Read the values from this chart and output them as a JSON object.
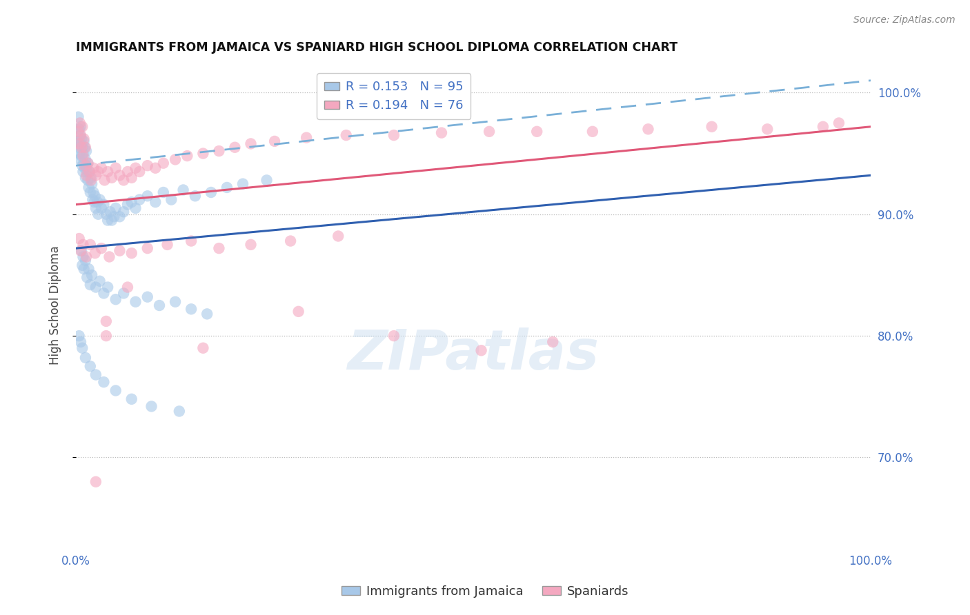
{
  "title": "IMMIGRANTS FROM JAMAICA VS SPANIARD HIGH SCHOOL DIPLOMA CORRELATION CHART",
  "source": "Source: ZipAtlas.com",
  "ylabel": "High School Diploma",
  "legend_label1": "Immigrants from Jamaica",
  "legend_label2": "Spaniards",
  "R1": 0.153,
  "N1": 95,
  "R2": 0.194,
  "N2": 76,
  "blue_color": "#a8c8e8",
  "pink_color": "#f4a8c0",
  "blue_line_color": "#3060b0",
  "pink_line_color": "#e05878",
  "dashed_line_color": "#7ab0d8",
  "x_min": 0.0,
  "x_max": 1.0,
  "y_min": 0.625,
  "y_max": 1.025,
  "y_ticks": [
    0.7,
    0.8,
    0.9,
    1.0
  ],
  "y_tick_labels": [
    "70.0%",
    "80.0%",
    "90.0%",
    "100.0%"
  ],
  "blue_line_x0": 0.0,
  "blue_line_y0": 0.872,
  "blue_line_x1": 1.0,
  "blue_line_y1": 0.932,
  "pink_line_x0": 0.0,
  "pink_line_y0": 0.908,
  "pink_line_x1": 1.0,
  "pink_line_y1": 0.972,
  "dashed_line_x0": 0.0,
  "dashed_line_y0": 0.94,
  "dashed_line_x1": 1.0,
  "dashed_line_y1": 1.01,
  "blue_scatter_x": [
    0.002,
    0.003,
    0.003,
    0.004,
    0.004,
    0.005,
    0.005,
    0.006,
    0.006,
    0.007,
    0.007,
    0.008,
    0.008,
    0.009,
    0.009,
    0.01,
    0.01,
    0.011,
    0.011,
    0.012,
    0.012,
    0.013,
    0.013,
    0.014,
    0.015,
    0.015,
    0.016,
    0.017,
    0.018,
    0.019,
    0.02,
    0.021,
    0.022,
    0.023,
    0.024,
    0.025,
    0.027,
    0.028,
    0.03,
    0.032,
    0.035,
    0.038,
    0.04,
    0.043,
    0.045,
    0.048,
    0.05,
    0.055,
    0.06,
    0.065,
    0.07,
    0.075,
    0.08,
    0.09,
    0.1,
    0.11,
    0.12,
    0.135,
    0.15,
    0.17,
    0.19,
    0.21,
    0.24,
    0.007,
    0.008,
    0.009,
    0.01,
    0.012,
    0.014,
    0.016,
    0.018,
    0.02,
    0.025,
    0.03,
    0.035,
    0.04,
    0.05,
    0.06,
    0.075,
    0.09,
    0.105,
    0.125,
    0.145,
    0.165,
    0.004,
    0.006,
    0.008,
    0.012,
    0.018,
    0.025,
    0.035,
    0.05,
    0.07,
    0.095,
    0.13
  ],
  "blue_scatter_y": [
    0.96,
    0.955,
    0.98,
    0.95,
    0.97,
    0.945,
    0.965,
    0.958,
    0.972,
    0.948,
    0.962,
    0.94,
    0.955,
    0.935,
    0.95,
    0.96,
    0.942,
    0.955,
    0.938,
    0.945,
    0.93,
    0.94,
    0.952,
    0.935,
    0.928,
    0.942,
    0.922,
    0.935,
    0.918,
    0.93,
    0.925,
    0.912,
    0.918,
    0.91,
    0.915,
    0.905,
    0.91,
    0.9,
    0.912,
    0.905,
    0.908,
    0.9,
    0.895,
    0.902,
    0.895,
    0.898,
    0.905,
    0.898,
    0.902,
    0.908,
    0.91,
    0.905,
    0.912,
    0.915,
    0.91,
    0.918,
    0.912,
    0.92,
    0.915,
    0.918,
    0.922,
    0.925,
    0.928,
    0.87,
    0.858,
    0.865,
    0.855,
    0.862,
    0.848,
    0.855,
    0.842,
    0.85,
    0.84,
    0.845,
    0.835,
    0.84,
    0.83,
    0.835,
    0.828,
    0.832,
    0.825,
    0.828,
    0.822,
    0.818,
    0.8,
    0.795,
    0.79,
    0.782,
    0.775,
    0.768,
    0.762,
    0.755,
    0.748,
    0.742,
    0.738
  ],
  "pink_scatter_x": [
    0.003,
    0.004,
    0.005,
    0.006,
    0.007,
    0.008,
    0.009,
    0.01,
    0.011,
    0.012,
    0.013,
    0.015,
    0.017,
    0.019,
    0.022,
    0.025,
    0.028,
    0.032,
    0.036,
    0.04,
    0.045,
    0.05,
    0.055,
    0.06,
    0.065,
    0.07,
    0.075,
    0.08,
    0.09,
    0.1,
    0.11,
    0.125,
    0.14,
    0.16,
    0.18,
    0.2,
    0.22,
    0.25,
    0.29,
    0.34,
    0.4,
    0.46,
    0.52,
    0.58,
    0.65,
    0.72,
    0.8,
    0.87,
    0.94,
    0.96,
    0.004,
    0.006,
    0.009,
    0.013,
    0.018,
    0.024,
    0.032,
    0.042,
    0.055,
    0.07,
    0.09,
    0.115,
    0.145,
    0.18,
    0.22,
    0.27,
    0.33,
    0.065,
    0.038,
    0.28,
    0.51,
    0.038,
    0.16,
    0.4,
    0.6,
    0.025
  ],
  "pink_scatter_y": [
    0.968,
    0.958,
    0.975,
    0.965,
    0.955,
    0.972,
    0.948,
    0.962,
    0.94,
    0.955,
    0.932,
    0.942,
    0.935,
    0.928,
    0.938,
    0.932,
    0.935,
    0.938,
    0.928,
    0.935,
    0.93,
    0.938,
    0.932,
    0.928,
    0.935,
    0.93,
    0.938,
    0.935,
    0.94,
    0.938,
    0.942,
    0.945,
    0.948,
    0.95,
    0.952,
    0.955,
    0.958,
    0.96,
    0.963,
    0.965,
    0.965,
    0.967,
    0.968,
    0.968,
    0.968,
    0.97,
    0.972,
    0.97,
    0.972,
    0.975,
    0.88,
    0.87,
    0.875,
    0.865,
    0.875,
    0.868,
    0.872,
    0.865,
    0.87,
    0.868,
    0.872,
    0.875,
    0.878,
    0.872,
    0.875,
    0.878,
    0.882,
    0.84,
    0.812,
    0.82,
    0.788,
    0.8,
    0.79,
    0.8,
    0.795,
    0.68
  ]
}
